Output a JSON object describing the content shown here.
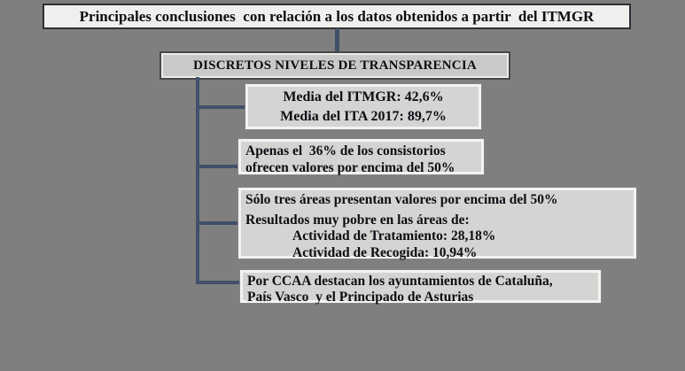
{
  "colors": {
    "background": "#7f7f7f",
    "connector": "#41506a",
    "title_fill": "#efefee",
    "subtitle_fill": "#c9c9c7",
    "box_fill": "#d4d4d2",
    "text": "#0d0d14"
  },
  "title_box": {
    "text": "Principales conclusiones  con relación a los datos obtenidos a partir  del ITMGR"
  },
  "subtitle_box": {
    "text": "DISCRETOS NIVELES DE TRANSPARENCIA"
  },
  "stat_boxes": {
    "media": {
      "lines": [
        "Media del ITMGR: 42,6%",
        "Media del ITA 2017: 89,7%"
      ]
    },
    "consistorios": {
      "lines": [
        "Apenas el  36% de los consistorios",
        "ofrecen valores por encima del 50%"
      ]
    },
    "areas": {
      "lines": [
        "Sólo tres áreas presentan valores por encima del 50%",
        "Resultados muy pobre en las áreas de:",
        "Actividad de Tratamiento: 28,18%",
        "Actividad de Recogida: 10,94%"
      ]
    },
    "ccaa": {
      "lines": [
        "Por CCAA destacan los ayuntamientos de Cataluña,",
        "País Vasco  y el Principado de Asturias"
      ]
    }
  }
}
